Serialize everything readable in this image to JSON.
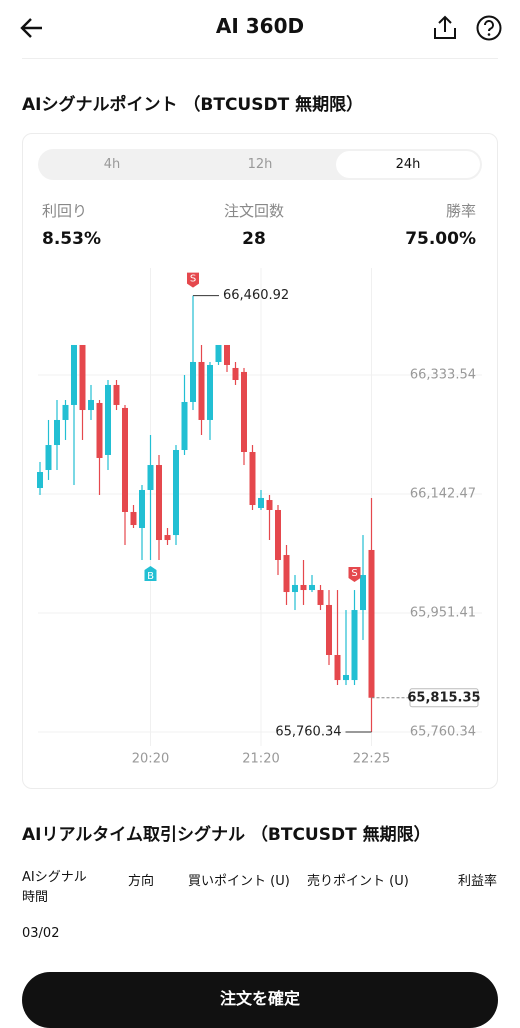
{
  "header": {
    "title": "AI 360D"
  },
  "section1": {
    "title": "AIシグナルポイント （BTCUSDT 無期限）"
  },
  "tabs": {
    "items": [
      "4h",
      "12h",
      "24h"
    ],
    "selected": 2
  },
  "stats": [
    {
      "label": "利回り",
      "value": "8.53%"
    },
    {
      "label": "注文回数",
      "value": "28"
    },
    {
      "label": "勝率",
      "value": "75.00%"
    }
  ],
  "chart_data": {
    "type": "candlestick",
    "categories": [
      null,
      null,
      null,
      null,
      null,
      null,
      null,
      null,
      null,
      null,
      null,
      null,
      null,
      "20:20",
      null,
      null,
      null,
      null,
      null,
      null,
      null,
      null,
      null,
      null,
      null,
      null,
      "21:20",
      null,
      null,
      null,
      null,
      null,
      null,
      null,
      null,
      null,
      null,
      null,
      null,
      "22:25"
    ],
    "open": [
      66152.1,
      66181.0,
      66221.1,
      66261.3,
      66285.4,
      66381.7,
      66277.3,
      66288.6,
      66205.1,
      66317.5,
      66280.6,
      66113.6,
      66087.9,
      66148.9,
      66189.0,
      66076.6,
      66076.6,
      66213.1,
      66290.2,
      66354.4,
      66261.3,
      66354.4,
      66381.7,
      66344.8,
      66338.4,
      66209.9,
      66120.0,
      66132.8,
      66116.8,
      66044.5,
      65985.1,
      65996.4,
      65988.3,
      65988.3,
      65964.3,
      65884.0,
      65843.8,
      65843.8,
      65956.2,
      66052.6
    ],
    "high": [
      66193.9,
      66261.3,
      66293.4,
      66293.4,
      66381.7,
      66381.7,
      66317.5,
      66293.4,
      66325.5,
      66325.5,
      66285.4,
      66124.8,
      66156.9,
      66237.2,
      66205.1,
      66087.9,
      66221.1,
      66333.5,
      66460.92,
      66381.7,
      66354.4,
      66381.7,
      66381.7,
      66354.4,
      66344.8,
      66221.1,
      66148.9,
      66140.9,
      66124.8,
      66060.6,
      66012.4,
      66036.5,
      66012.4,
      65996.4,
      65988.3,
      65988.3,
      65956.2,
      65988.3,
      66076.6,
      66136.1
    ],
    "low": [
      66140.9,
      66165.0,
      66181.0,
      66229.2,
      66156.9,
      66229.2,
      66261.3,
      66140.9,
      66181.0,
      66277.3,
      66060.6,
      66087.9,
      66036.5,
      66036.5,
      66036.5,
      66060.6,
      66060.6,
      66205.1,
      66277.3,
      66237.2,
      66229.2,
      66349.6,
      66338.4,
      66317.5,
      66189.0,
      66116.8,
      66116.8,
      66068.6,
      66012.4,
      65964.3,
      65956.2,
      65964.3,
      65985.1,
      65956.2,
      65867.9,
      65835.8,
      65835.8,
      65835.8,
      65908.1,
      65760.34
    ],
    "close": [
      66177.8,
      66221.1,
      66261.3,
      66285.4,
      66381.7,
      66277.3,
      66293.4,
      66200.3,
      66317.5,
      66285.4,
      66113.6,
      66092.7,
      66148.9,
      66189.0,
      66068.6,
      66068.6,
      66213.1,
      66290.2,
      66354.4,
      66261.3,
      66349.6,
      66381.7,
      66349.6,
      66325.5,
      66209.9,
      66124.8,
      66136.1,
      66116.8,
      66036.5,
      65985.1,
      65996.4,
      65988.3,
      65996.4,
      65964.3,
      65884.0,
      65843.8,
      65851.9,
      65956.2,
      66012.4,
      65815.35
    ],
    "up_color": "#22bfd3",
    "down_color": "#e5484d",
    "ylim": [
      65737.9,
      66505.3
    ],
    "yticks": [
      {
        "value": 65760.34,
        "label": "65,760.34"
      },
      {
        "value": 65951.41,
        "label": "65,951.41"
      },
      {
        "value": 66142.47,
        "label": "66,142.47"
      },
      {
        "value": 66333.54,
        "label": "66,333.54"
      }
    ],
    "grid": true,
    "high_label": {
      "value": 66460.92,
      "label": "66,460.92"
    },
    "low_label": {
      "value": 65760.34,
      "label": "65,760.34"
    },
    "last_label": {
      "value": 65815.35,
      "label": "65,815.35"
    },
    "signals": [
      {
        "index": 13,
        "label": "B"
      },
      {
        "index": 18,
        "label": "S"
      },
      {
        "index": 37,
        "label": "S"
      }
    ]
  },
  "section2": {
    "title": "AIリアルタイム取引シグナル （BTCUSDT 無期限）"
  },
  "table": {
    "headers": [
      "AIシグナル時間",
      "方向",
      "買いポイント (U)",
      "売りポイント (U)",
      "利益率"
    ],
    "rows": [
      [
        "03/02"
      ]
    ]
  },
  "button": {
    "label": "注文を確定"
  }
}
